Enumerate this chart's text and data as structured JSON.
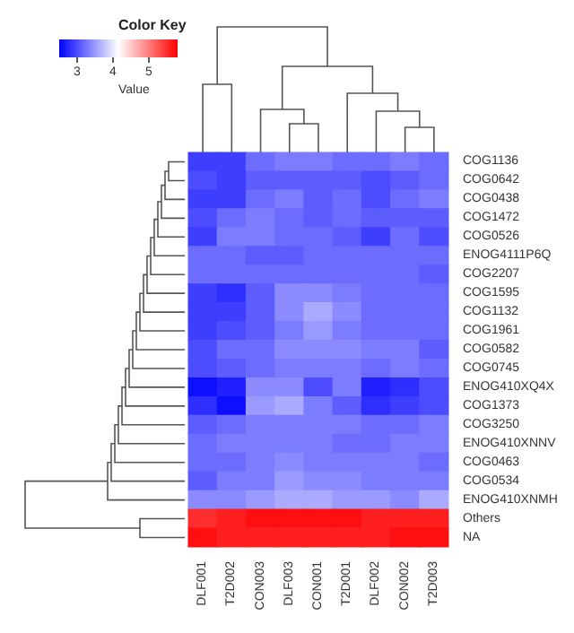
{
  "chart_data": {
    "type": "heatmap",
    "title": "Color Key",
    "clabel": "Value",
    "clim": [
      2.5,
      5.8
    ],
    "cticks": [
      3,
      4,
      5
    ],
    "categories": [
      "DLF001",
      "T2D002",
      "CON003",
      "DLF003",
      "CON001",
      "T2D001",
      "DLF002",
      "CON002",
      "T2D003"
    ],
    "y_categories": [
      "COG1136",
      "COG0642",
      "COG0438",
      "COG1472",
      "COG0526",
      "ENOG4111P6Q",
      "COG2207",
      "COG1595",
      "COG1132",
      "COG1961",
      "COG0582",
      "COG0745",
      "ENOG410XQ4X",
      "COG1373",
      "COG3250",
      "ENOG410XNNV",
      "COG0463",
      "COG0534",
      "ENOG410XNMH",
      "Others",
      "NA"
    ],
    "cells": [
      [
        2.9,
        2.9,
        3.2,
        3.3,
        3.3,
        3.2,
        3.2,
        3.3,
        3.2
      ],
      [
        3.0,
        2.9,
        3.1,
        3.1,
        3.1,
        3.1,
        3.0,
        3.1,
        3.2
      ],
      [
        2.9,
        2.9,
        3.2,
        3.3,
        3.1,
        3.2,
        3.0,
        3.2,
        3.3
      ],
      [
        3.0,
        3.2,
        3.3,
        3.2,
        3.1,
        3.2,
        3.1,
        3.1,
        3.1
      ],
      [
        2.9,
        3.3,
        3.3,
        3.2,
        3.2,
        3.1,
        2.9,
        3.2,
        3.0
      ],
      [
        3.2,
        3.2,
        3.1,
        3.1,
        3.2,
        3.2,
        3.2,
        3.2,
        3.2
      ],
      [
        3.2,
        3.2,
        3.2,
        3.2,
        3.2,
        3.2,
        3.2,
        3.2,
        3.1
      ],
      [
        2.9,
        2.8,
        3.1,
        3.4,
        3.4,
        3.3,
        3.2,
        3.2,
        3.2
      ],
      [
        2.9,
        2.9,
        3.1,
        3.4,
        3.6,
        3.4,
        3.2,
        3.2,
        3.2
      ],
      [
        2.9,
        3.0,
        3.1,
        3.3,
        3.5,
        3.3,
        3.2,
        3.2,
        3.2
      ],
      [
        3.0,
        3.2,
        3.2,
        3.4,
        3.4,
        3.4,
        3.3,
        3.3,
        3.1
      ],
      [
        3.0,
        3.1,
        3.2,
        3.3,
        3.3,
        3.3,
        3.2,
        3.3,
        3.2
      ],
      [
        2.6,
        2.7,
        3.4,
        3.4,
        3.0,
        3.3,
        2.7,
        2.8,
        3.0
      ],
      [
        2.8,
        2.6,
        3.5,
        3.6,
        3.3,
        3.1,
        2.8,
        2.9,
        3.0
      ],
      [
        3.1,
        3.2,
        3.3,
        3.3,
        3.3,
        3.3,
        3.2,
        3.2,
        3.3
      ],
      [
        3.2,
        3.3,
        3.3,
        3.3,
        3.3,
        3.2,
        3.2,
        3.3,
        3.3
      ],
      [
        3.2,
        3.2,
        3.3,
        3.4,
        3.3,
        3.3,
        3.3,
        3.3,
        3.2
      ],
      [
        3.1,
        3.3,
        3.3,
        3.5,
        3.4,
        3.4,
        3.3,
        3.3,
        3.3
      ],
      [
        3.4,
        3.4,
        3.5,
        3.6,
        3.6,
        3.5,
        3.5,
        3.4,
        3.6
      ],
      [
        5.5,
        5.6,
        5.7,
        5.7,
        5.7,
        5.7,
        5.6,
        5.6,
        5.6
      ],
      [
        5.7,
        5.6,
        5.6,
        5.6,
        5.6,
        5.6,
        5.6,
        5.7,
        5.7
      ]
    ]
  }
}
